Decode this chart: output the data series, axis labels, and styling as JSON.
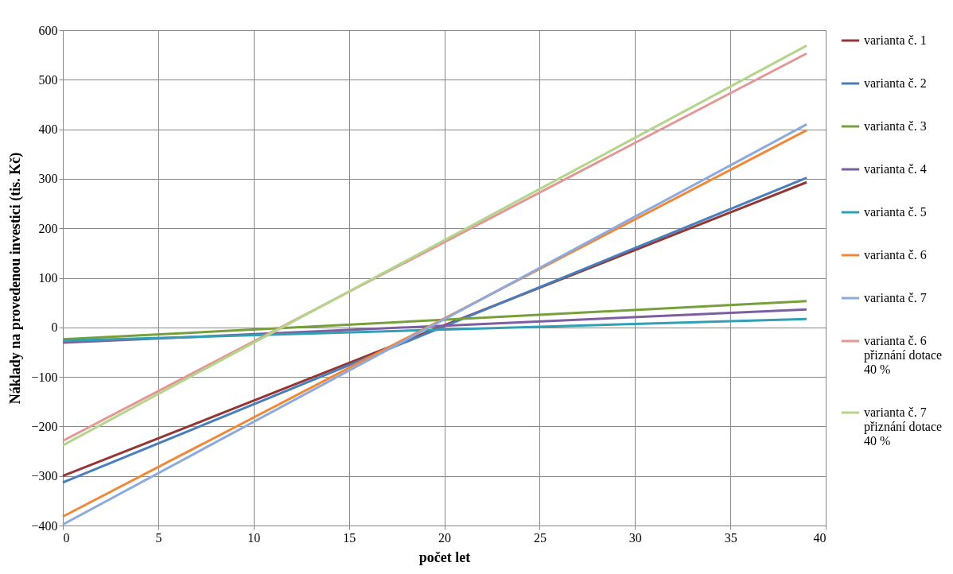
{
  "chart_data": {
    "type": "line",
    "xlabel": "počet let",
    "ylabel": "Náklady na provedenou investici (tis. Kč)",
    "x": [
      0,
      39
    ],
    "xlim": [
      0,
      40
    ],
    "xticks": [
      0,
      5,
      10,
      15,
      20,
      25,
      30,
      35,
      40
    ],
    "ylim": [
      -400,
      600
    ],
    "yticks": [
      -400,
      -300,
      -200,
      -100,
      0,
      100,
      200,
      300,
      400,
      500,
      600
    ],
    "grid": true,
    "legend": "right",
    "marker": "none",
    "line_style": "solid",
    "series": [
      {
        "name": "varianta č. 1",
        "color": "#943634",
        "values": [
          -300,
          293
        ]
      },
      {
        "name": "varianta č. 2",
        "color": "#4a7ebb",
        "values": [
          -313,
          302
        ]
      },
      {
        "name": "varianta č. 3",
        "color": "#77a03b",
        "values": [
          -24,
          53
        ]
      },
      {
        "name": "varianta č. 4",
        "color": "#7d5fa0",
        "values": [
          -31,
          36
        ]
      },
      {
        "name": "varianta č. 5",
        "color": "#31a0b5",
        "values": [
          -27,
          17
        ]
      },
      {
        "name": "varianta č. 6",
        "color": "#f0883a",
        "values": [
          -382,
          398
        ]
      },
      {
        "name": "varianta č. 7",
        "color": "#8ea9db",
        "values": [
          -398,
          410
        ]
      },
      {
        "name": "varianta č. 6 přiznání dotace 40 %",
        "color": "#e39795",
        "values": [
          -229,
          553
        ]
      },
      {
        "name": "varianta č. 7 přiznání dotace 40 %",
        "color": "#b3d58c",
        "values": [
          -238,
          569
        ]
      }
    ]
  }
}
